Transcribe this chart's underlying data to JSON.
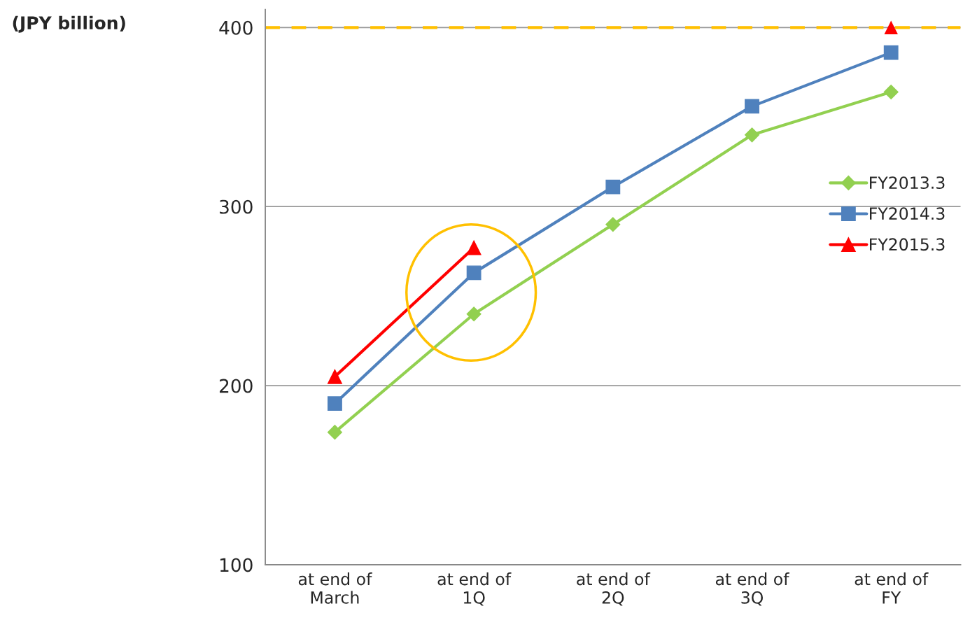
{
  "chart_data": {
    "type": "line",
    "annotations": [
      "(JPY billion)"
    ],
    "categories": [
      "at end of\nMarch",
      "at end of\n1Q",
      "at end of\n2Q",
      "at end of\n3Q",
      "at end of\nFY"
    ],
    "series": [
      {
        "name": "FY2013.3",
        "color": "#92d050",
        "marker": "diamond",
        "values": [
          174,
          240,
          290,
          340,
          364
        ]
      },
      {
        "name": "FY2014.3",
        "color": "#4f81bd",
        "marker": "square",
        "values": [
          190,
          263,
          311,
          356,
          386
        ]
      },
      {
        "name": "FY2015.3",
        "color": "#ff0000",
        "marker": "triangle",
        "values": [
          205,
          277,
          null,
          null,
          null
        ]
      },
      {
        "type": "scatter",
        "color": "#ff0000",
        "marker": "triangle",
        "values": [
          null,
          null,
          null,
          null,
          400
        ]
      }
    ],
    "ylim": [
      100,
      410
    ],
    "yticks": [
      100,
      200,
      300,
      400
    ],
    "grid": "y",
    "legend": "right",
    "ref_lines": [
      {
        "axis": "y",
        "value": 400,
        "color": "#ffc000",
        "line_style": "dashed"
      }
    ]
  }
}
